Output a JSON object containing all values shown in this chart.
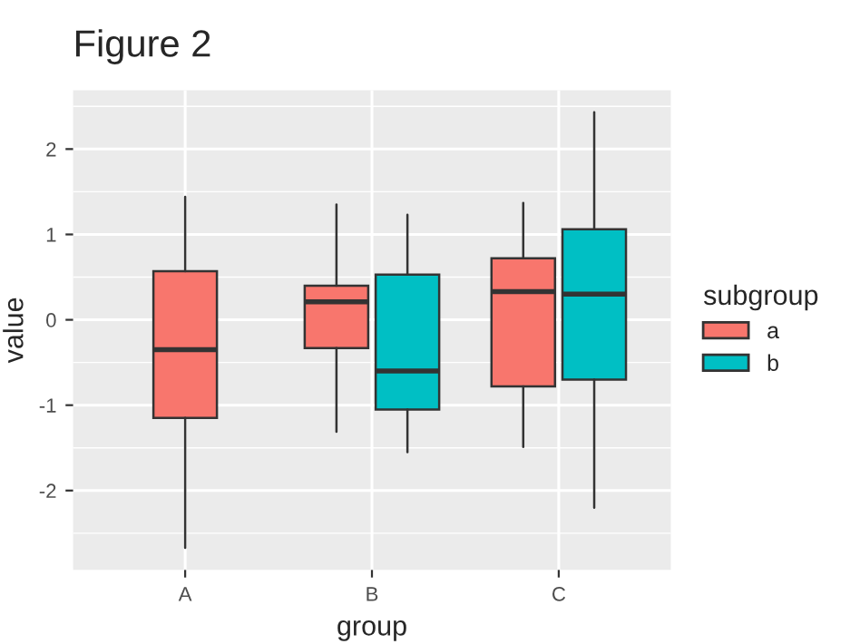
{
  "chart_data": {
    "type": "box",
    "title": "Figure 2",
    "xlabel": "group",
    "ylabel": "value",
    "legend_title": "subgroup",
    "categories": [
      "A",
      "B",
      "C"
    ],
    "series": [
      {
        "name": "a",
        "color": "#f8766d",
        "boxes": [
          {
            "low": -2.67,
            "q1": -1.15,
            "median": -0.35,
            "q3": 0.57,
            "high": 1.44
          },
          {
            "low": -1.31,
            "q1": -0.33,
            "median": 0.21,
            "q3": 0.4,
            "high": 1.35
          },
          {
            "low": -1.49,
            "q1": -0.78,
            "median": 0.33,
            "q3": 0.72,
            "high": 1.37
          }
        ]
      },
      {
        "name": "b",
        "color": "#00bfc4",
        "boxes": [
          null,
          {
            "low": -1.55,
            "q1": -1.05,
            "median": -0.6,
            "q3": 0.53,
            "high": 1.23
          },
          {
            "low": -2.2,
            "q1": -0.7,
            "median": 0.3,
            "q3": 1.06,
            "high": 2.43
          }
        ]
      }
    ],
    "ylim": [
      -2.93,
      2.69
    ],
    "yticks": [
      -2,
      -1,
      0,
      1,
      2
    ],
    "grid": true,
    "legend": "right"
  }
}
